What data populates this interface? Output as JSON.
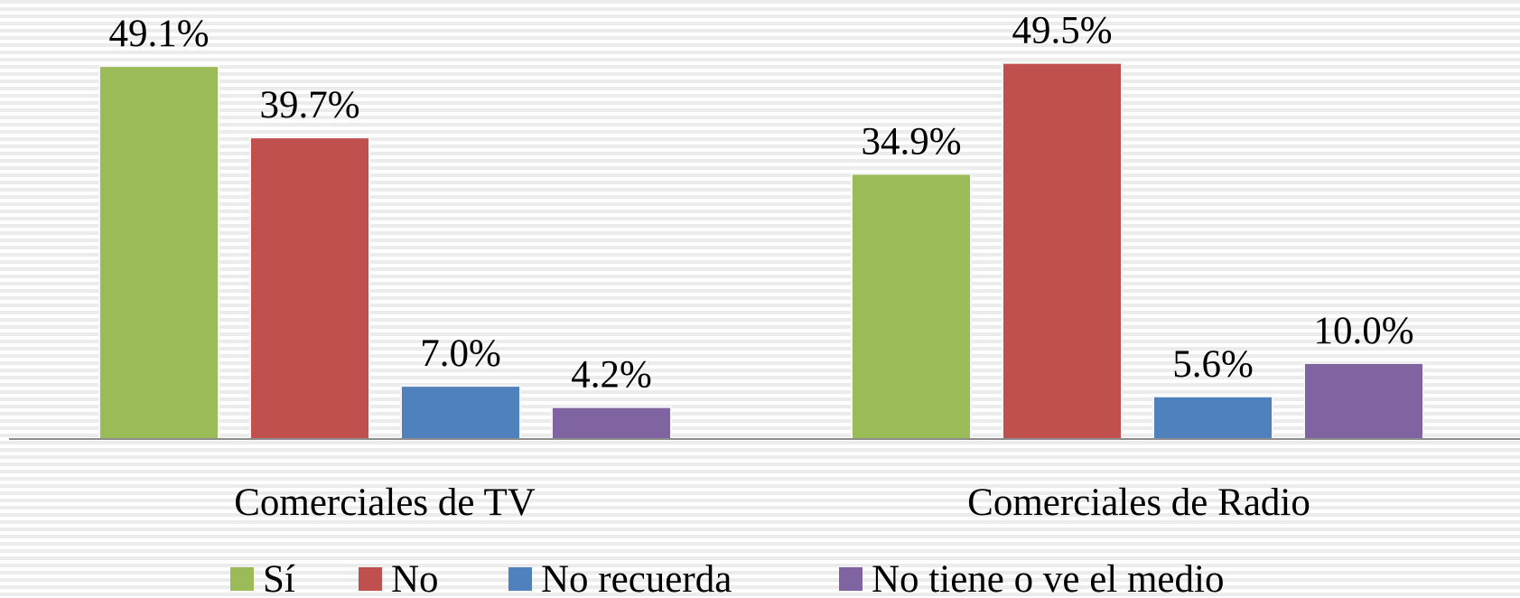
{
  "chart_data": {
    "type": "bar",
    "categories": [
      "Comerciales de TV",
      "Comerciales de Radio"
    ],
    "series": [
      {
        "name": "Sí",
        "color": "#9bbb59",
        "values": [
          49.1,
          34.9
        ],
        "value_labels": [
          "49.1%",
          "34.9%"
        ]
      },
      {
        "name": "No",
        "color": "#c0504d",
        "values": [
          39.7,
          49.5
        ],
        "value_labels": [
          "39.7%",
          "49.5%"
        ]
      },
      {
        "name": "No recuerda",
        "color": "#4f81bd",
        "values": [
          7.0,
          5.6
        ],
        "value_labels": [
          "7.0%",
          "5.6%"
        ]
      },
      {
        "name": "No tiene o ve el medio",
        "color": "#8064a2",
        "values": [
          4.2,
          10.0
        ],
        "value_labels": [
          "4.2%",
          "10.0%"
        ]
      }
    ],
    "legend": "bottom"
  }
}
